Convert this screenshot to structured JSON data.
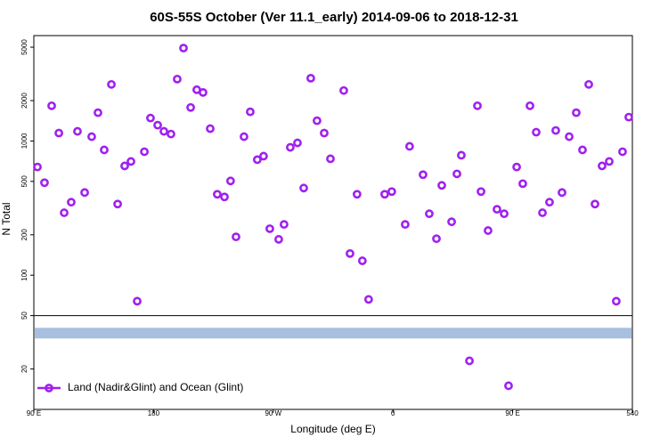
{
  "chart_data": {
    "type": "scatter",
    "title": "60S-55S October (Ver 11.1_early)   2014-09-06 to 2018-12-31",
    "x_label": "Longitude (deg E)",
    "y_label": "N Total",
    "log_y": true,
    "xlim": [
      90,
      540
    ],
    "ylim": [
      10,
      6100
    ],
    "xticks": [
      {
        "value": 90,
        "label": "90 E"
      },
      180,
      {
        "value": 270,
        "label": "90 W"
      },
      {
        "value": 360,
        "label": "0"
      },
      {
        "value": 450,
        "label": "90 E"
      },
      540
    ],
    "yticks": [
      20,
      50,
      100,
      200,
      500,
      1000,
      2000,
      5000
    ],
    "hline": 50,
    "band": {
      "value": 37,
      "color": "#a8bfe0"
    },
    "legend": "bottom-left",
    "series": [
      {
        "name": "Land (Nadir&Glint) and Ocean (Glint)",
        "color": "#a020f0",
        "x": [
          92.7,
          98.0,
          103.4,
          108.8,
          112.8,
          118.1,
          122.8,
          128.2,
          133.5,
          138.2,
          142.9,
          148.3,
          153.0,
          158.3,
          163.0,
          167.7,
          173.1,
          177.7,
          183.1,
          187.8,
          193.1,
          197.8,
          202.5,
          207.9,
          212.5,
          217.2,
          222.6,
          227.9,
          233.3,
          237.9,
          242.0,
          248.0,
          252.7,
          258.0,
          262.7,
          267.4,
          274.1,
          278.1,
          282.8,
          288.2,
          292.9,
          298.2,
          302.9,
          308.3,
          313.0,
          323.0,
          327.7,
          333.0,
          337.0,
          341.7,
          353.8,
          359.1,
          369.2,
          372.5,
          382.6,
          387.3,
          392.7,
          396.7,
          404.1,
          408.1,
          411.4,
          417.5,
          423.5,
          426.2,
          431.5,
          438.2,
          443.6,
          446.9,
          453.0,
          457.6,
          463.0,
          467.7,
          472.4,
          477.7,
          482.4,
          487.1,
          492.5,
          497.8,
          502.5,
          507.2,
          511.9,
          517.2,
          522.6,
          527.9,
          532.6,
          537.3
        ],
        "values": [
          640,
          489,
          1830,
          1146,
          292,
          350,
          1180,
          413,
          1077,
          1625,
          858,
          2640,
          339,
          652,
          704,
          64,
          832,
          1482,
          1312,
          1180,
          1127,
          2893,
          4925,
          1778,
          2410,
          2300,
          1236,
          401,
          383,
          504,
          193,
          1077,
          1650,
          726,
          771,
          222,
          185,
          239,
          897,
          968,
          446,
          2937,
          1416,
          1146,
          737,
          2377,
          145,
          401,
          128,
          66,
          401,
          420,
          239,
          912,
          561,
          287,
          187,
          467,
          250,
          569,
          783,
          23,
          1830,
          420,
          215,
          310,
          287,
          15,
          640,
          481,
          1830,
          1163,
          292,
          350,
          1198,
          413,
          1077,
          1625,
          858,
          2640,
          339,
          652,
          704,
          64,
          832,
          1506
        ]
      }
    ]
  }
}
